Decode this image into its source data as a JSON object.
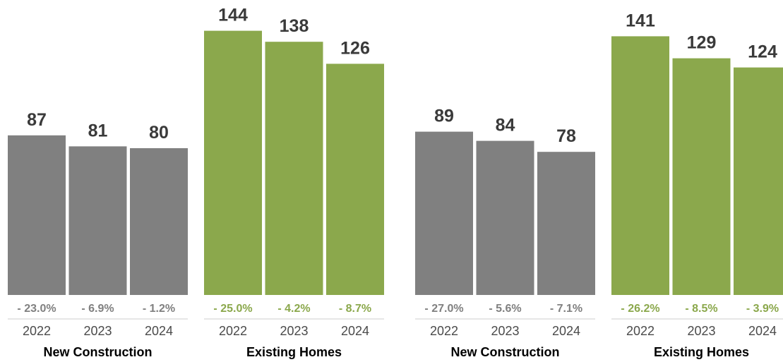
{
  "chart_data": [
    {
      "type": "bar",
      "groups": [
        {
          "label": "New Construction",
          "color": "#808080",
          "pct_color": "#808080",
          "bars": [
            {
              "year": "2022",
              "value": 87,
              "change": "- 23.0%"
            },
            {
              "year": "2023",
              "value": 81,
              "change": "- 6.9%"
            },
            {
              "year": "2024",
              "value": 80,
              "change": "- 1.2%"
            }
          ]
        },
        {
          "label": "Existing Homes",
          "color": "#8ba84c",
          "pct_color": "#8ba84c",
          "bars": [
            {
              "year": "2022",
              "value": 144,
              "change": "- 25.0%"
            },
            {
              "year": "2023",
              "value": 138,
              "change": "- 4.2%"
            },
            {
              "year": "2024",
              "value": 126,
              "change": "- 8.7%"
            }
          ]
        }
      ]
    },
    {
      "type": "bar",
      "groups": [
        {
          "label": "New Construction",
          "color": "#808080",
          "pct_color": "#808080",
          "bars": [
            {
              "year": "2022",
              "value": 89,
              "change": "- 27.0%"
            },
            {
              "year": "2023",
              "value": 84,
              "change": "- 5.6%"
            },
            {
              "year": "2024",
              "value": 78,
              "change": "- 7.1%"
            }
          ]
        },
        {
          "label": "Existing Homes",
          "color": "#8ba84c",
          "pct_color": "#8ba84c",
          "bars": [
            {
              "year": "2022",
              "value": 141,
              "change": "- 26.2%"
            },
            {
              "year": "2023",
              "value": 129,
              "change": "- 8.5%"
            },
            {
              "year": "2024",
              "value": 124,
              "change": "- 3.9%"
            }
          ]
        }
      ]
    }
  ]
}
